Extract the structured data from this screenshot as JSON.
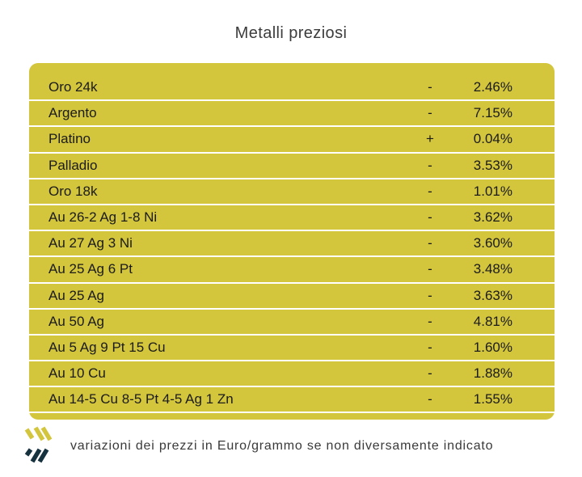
{
  "page": {
    "title": "Metalli preziosi"
  },
  "table": {
    "rows": [
      {
        "label": "Oro 24k",
        "sign": "-",
        "value": "2.46%"
      },
      {
        "label": "Argento",
        "sign": "-",
        "value": "7.15%"
      },
      {
        "label": "Platino",
        "sign": "+",
        "value": "0.04%"
      },
      {
        "label": "Palladio",
        "sign": "-",
        "value": "3.53%"
      },
      {
        "label": "Oro 18k",
        "sign": "-",
        "value": "1.01%"
      },
      {
        "label": "Au 26-2 Ag 1-8 Ni",
        "sign": "-",
        "value": "3.62%"
      },
      {
        "label": "Au 27 Ag 3 Ni",
        "sign": "-",
        "value": "3.60%"
      },
      {
        "label": "Au 25 Ag 6 Pt",
        "sign": "-",
        "value": "3.48%"
      },
      {
        "label": "Au 25 Ag",
        "sign": "-",
        "value": "3.63%"
      },
      {
        "label": "Au 50 Ag",
        "sign": "-",
        "value": "4.81%"
      },
      {
        "label": "Au 5 Ag 9 Pt 15 Cu",
        "sign": "-",
        "value": "1.60%"
      },
      {
        "label": "Au 10 Cu",
        "sign": "-",
        "value": "1.88%"
      },
      {
        "label": "Au 14-5 Cu 8-5 Pt 4-5 Ag 1 Zn",
        "sign": "-",
        "value": "1.55%"
      }
    ]
  },
  "footer": {
    "note": "variazioni dei prezzi in Euro/grammo se non diversamente indicato"
  },
  "icons": {
    "logo": "diagonal-hatch-logo"
  },
  "colors": {
    "table_bg": "#d3c53c",
    "separator": "#ffffff",
    "row_text": "#1b1b1b",
    "title_text": "#3c3c3c",
    "footer_text": "#3a3a3a",
    "logo_yellow": "#d3c53c",
    "logo_navy": "#16323f"
  }
}
